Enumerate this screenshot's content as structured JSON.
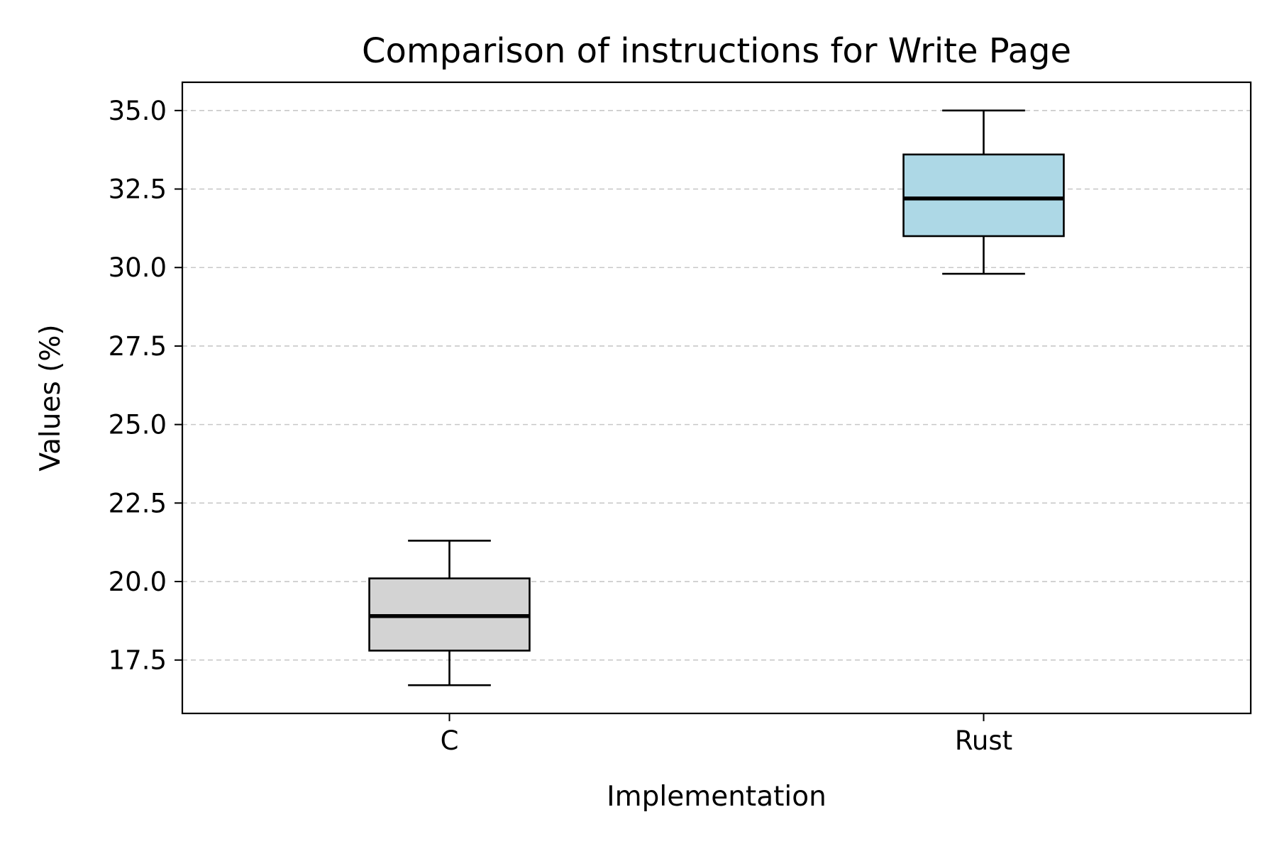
{
  "chart_data": {
    "type": "box",
    "title": "Comparison of instructions for Write Page",
    "xlabel": "Implementation",
    "ylabel": "Values (%)",
    "categories": [
      "C",
      "Rust"
    ],
    "boxes": [
      {
        "name": "C",
        "whisker_low": 16.7,
        "q1": 17.8,
        "median": 18.9,
        "q3": 20.1,
        "whisker_high": 21.3,
        "color": "#d3d3d3"
      },
      {
        "name": "Rust",
        "whisker_low": 29.8,
        "q1": 31.0,
        "median": 32.2,
        "q3": 33.6,
        "whisker_high": 35.0,
        "color": "#add8e6"
      }
    ],
    "ylim": [
      15.8,
      35.9
    ],
    "yticks": [
      "17.5",
      "20.0",
      "22.5",
      "25.0",
      "27.5",
      "30.0",
      "32.5",
      "35.0"
    ],
    "grid": "y-dashed",
    "legend": "none"
  }
}
